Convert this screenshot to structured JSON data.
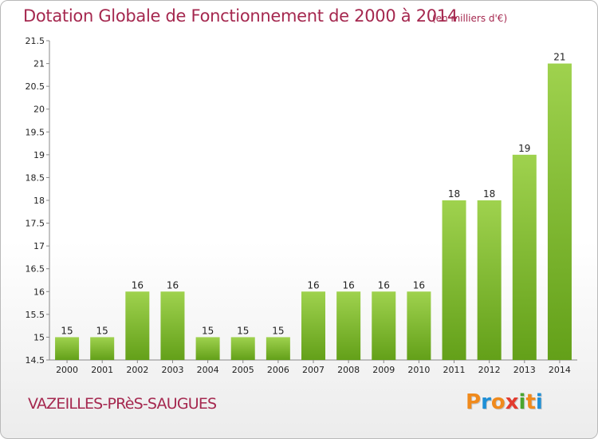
{
  "header": {
    "title": "Dotation Globale de Fonctionnement de 2000 à 2014",
    "subtitle": "(en milliers d'€)"
  },
  "footer": {
    "commune": "VAZEILLES-PRèS-SAUGUES",
    "logo": [
      "P",
      "r",
      "o",
      "x",
      "i",
      "t",
      "i"
    ],
    "logo_colors": [
      "#f08a1c",
      "#1e8fd6",
      "#f08a1c",
      "#e23b2f",
      "#4aa52e",
      "#f08a1c",
      "#1e8fd6"
    ]
  },
  "chart_data": {
    "type": "bar",
    "title": "Dotation Globale de Fonctionnement de 2000 à 2014",
    "subtitle": "(en milliers d'€)",
    "xlabel": "",
    "ylabel": "",
    "categories": [
      "2000",
      "2001",
      "2002",
      "2003",
      "2004",
      "2005",
      "2006",
      "2007",
      "2008",
      "2009",
      "2010",
      "2011",
      "2012",
      "2013",
      "2014"
    ],
    "values": [
      15,
      15,
      16,
      16,
      15,
      15,
      15,
      16,
      16,
      16,
      16,
      18,
      18,
      19,
      21
    ],
    "ylim": [
      14.5,
      21.5
    ],
    "yticks": [
      "14.5",
      "15",
      "15.5",
      "16",
      "16.5",
      "17",
      "17.5",
      "18",
      "18.5",
      "19",
      "19.5",
      "20",
      "20.5",
      "21",
      "21.5"
    ],
    "grid": false,
    "bar_color_top": "#9fd24e",
    "bar_color_bottom": "#63a019",
    "axis_color": "#888888"
  }
}
